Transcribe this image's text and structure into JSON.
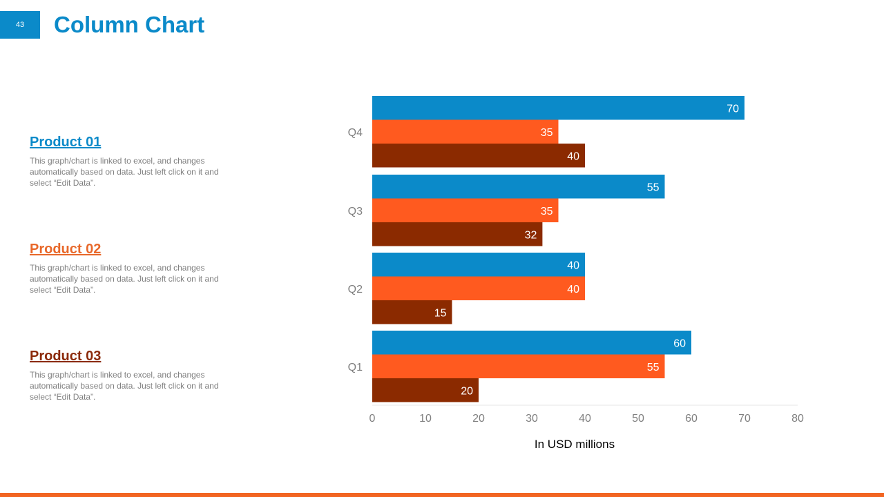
{
  "page_number": "43",
  "title": "Column Chart",
  "products": [
    {
      "name": "Product 01",
      "color": "#0b8ac9",
      "text": "This graph/chart is linked to excel, and changes automatically based on data. Just left click on it and select “Edit Data”."
    },
    {
      "name": "Product 02",
      "color": "#e8682a",
      "text": "This graph/chart is linked to excel, and changes automatically based on data. Just left click on it and select “Edit Data”."
    },
    {
      "name": "Product 03",
      "color": "#8b2a0a",
      "text": "This graph/chart is linked to excel, and changes automatically based on data. Just left click on it and select “Edit Data”."
    }
  ],
  "chart_data": {
    "type": "bar",
    "orientation": "horizontal",
    "categories": [
      "Q1",
      "Q2",
      "Q3",
      "Q4"
    ],
    "series": [
      {
        "values": [
          60,
          40,
          55,
          70
        ],
        "color": "#0b8ac9"
      },
      {
        "values": [
          55,
          40,
          35,
          35
        ],
        "color": "#ff5a1f"
      },
      {
        "values": [
          20,
          15,
          32,
          40
        ],
        "color": "#8b2a00"
      }
    ],
    "xlabel": "In USD millions",
    "xlim": [
      0,
      80
    ],
    "xticks": [
      0,
      10,
      20,
      30,
      40,
      50,
      60,
      70,
      80
    ],
    "data_labels": true,
    "grid": false
  },
  "colors": {
    "accent": "#0b8ac9",
    "bottom_bar": "#f26522"
  }
}
